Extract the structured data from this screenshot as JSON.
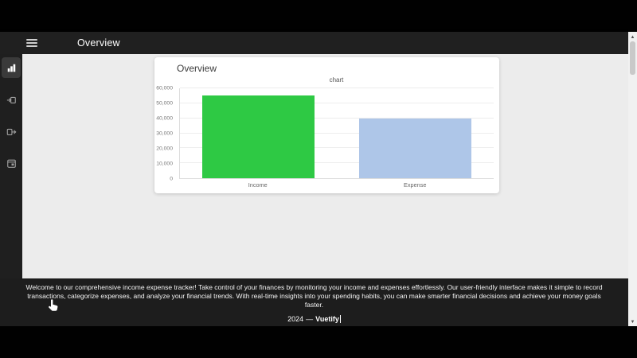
{
  "appbar": {
    "title": "Overview"
  },
  "sidebar": {
    "items": [
      {
        "id": "overview",
        "icon": "chart-bar-icon",
        "active": true
      },
      {
        "id": "income",
        "icon": "cash-in-icon",
        "active": false
      },
      {
        "id": "expense",
        "icon": "cash-out-icon",
        "active": false
      },
      {
        "id": "transactions",
        "icon": "calendar-icon",
        "active": false
      }
    ]
  },
  "card": {
    "title": "Overview"
  },
  "chart_data": {
    "type": "bar",
    "title": "chart",
    "categories": [
      "Income",
      "Expense"
    ],
    "values": [
      55000,
      40000
    ],
    "bar_colors": [
      "#2ec944",
      "#aec6e8"
    ],
    "ylim": [
      0,
      60000
    ],
    "yticks": [
      0,
      10000,
      20000,
      30000,
      40000,
      50000,
      60000
    ],
    "ytick_labels": [
      "0",
      "10,000",
      "20,000",
      "30,000",
      "40,000",
      "50,000",
      "60,000"
    ],
    "grid": true,
    "legend": false
  },
  "footer": {
    "description": "Welcome to our comprehensive income expense tracker! Take control of your finances by monitoring your income and expenses effortlessly. Our user-friendly interface makes it simple to record transactions, categorize expenses, and analyze your financial trends. With real-time insights into your spending habits, you can make smarter financial decisions and achieve your money goals faster.",
    "year": "2024",
    "separator": "—",
    "brand": "Vuetify"
  },
  "icons": {
    "scroll_up": "▲",
    "scroll_down": "▼"
  },
  "colors": {
    "appbar_bg": "#202020",
    "sidebar_bg": "#1f1f1f",
    "footer_bg": "#1d1d1d",
    "main_bg": "#ececec",
    "income_bar": "#2ec944",
    "expense_bar": "#aec6e8"
  }
}
